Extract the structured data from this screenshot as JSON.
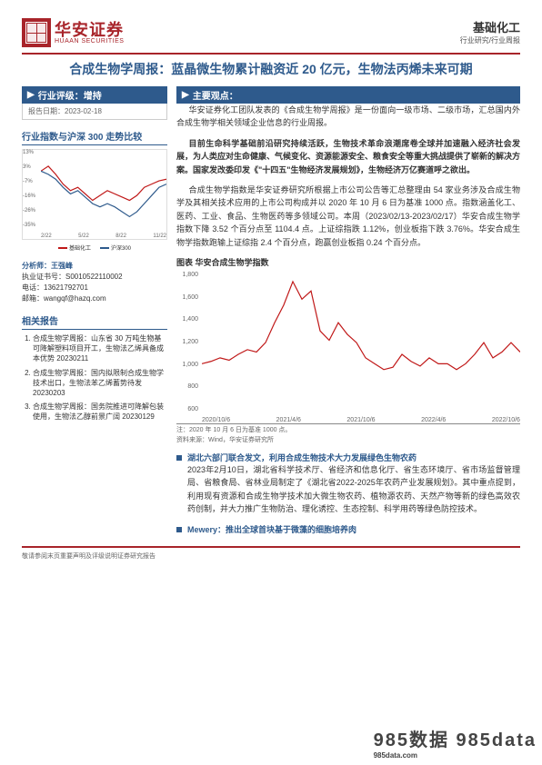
{
  "header": {
    "logo_cn": "华安证券",
    "logo_en": "HUAAN SECURITIES",
    "category": "基础化工",
    "subcategory": "行业研究/行业周报"
  },
  "title": "合成生物学周报：蓝晶微生物累计融资近 20 亿元，生物法丙烯未来可期",
  "left": {
    "rating_label": "行业评级：增持",
    "report_date_label": "报告日期：",
    "report_date": "2023-02-18",
    "section_compare": "行业指数与沪深 300 走势比较",
    "small_chart": {
      "y_ticks": [
        "13%",
        "3%",
        "-7%",
        "-16%",
        "-26%",
        "-35%"
      ],
      "x_ticks": [
        "2/22",
        "5/22",
        "8/22",
        "11/22"
      ],
      "series": [
        {
          "label": "基础化工",
          "color": "#c01818",
          "points": [
            0,
            3,
            -2,
            -8,
            -12,
            -10,
            -14,
            -18,
            -15,
            -12,
            -14,
            -16,
            -18,
            -15,
            -10,
            -8,
            -6,
            -5
          ]
        },
        {
          "label": "沪深300",
          "color": "#2e5a8c",
          "points": [
            0,
            -2,
            -5,
            -10,
            -14,
            -12,
            -16,
            -20,
            -22,
            -20,
            -22,
            -25,
            -28,
            -25,
            -20,
            -15,
            -10,
            -8
          ]
        }
      ],
      "y_range": [
        -35,
        13
      ]
    },
    "analyst": {
      "label": "分析师：王强峰",
      "cert_label": "执业证书号：",
      "cert": "S0010522110002",
      "tel_label": "电话：",
      "tel": "13621792701",
      "email_label": "邮箱：",
      "email": "wangqf@hazq.com"
    },
    "related_hd": "相关报告",
    "related": [
      "合成生物学周报：山东省 30 万吨生物基可降解塑料项目开工，生物法乙烯具备成本优势 20230211",
      "合成生物学周报：国内拟限制合成生物学技术出口，生物法苯乙烯蓄势待发 20230203",
      "合成生物学周报：国务院推进可降解包装使用，生物法乙醇前景广阔 20230129"
    ]
  },
  "right": {
    "main_view_hd": "主要观点：",
    "paragraphs": [
      {
        "bold": false,
        "text": "华安证券化工团队发表的《合成生物学周报》是一份面向一级市场、二级市场，汇总国内外合成生物学相关领域企业信息的行业周报。"
      },
      {
        "bold": true,
        "text": "目前生命科学基础前沿研究持续活跃，生物技术革命浪潮席卷全球并加速融入经济社会发展，为人类应对生命健康、气候变化、资源能源安全、粮食安全等重大挑战提供了崭新的解决方案。国家发改委印发《\"十四五\"生物经济发展规划》，生物经济万亿赛道呼之欲出。"
      },
      {
        "bold": false,
        "text": "合成生物学指数是华安证券研究所根据上市公司公告等汇总整理由 54 家业务涉及合成生物学及其相关技术应用的上市公司构成并以 2020 年 10 月 6 日为基准 1000 点。指数涵盖化工、医药、工业、食品、生物医药等多领域公司。本周（2023/02/13-2023/02/17）华安合成生物学指数下降 3.52 个百分点至 1104.4 点。上证综指跌 1.12%，创业板指下跌 3.76%。华安合成生物学指数跑输上证综指 2.4 个百分点，跑赢创业板指 0.24 个百分点。"
      }
    ],
    "chart_title": "图表 华安合成生物学指数",
    "big_chart": {
      "y_ticks": [
        "1,800",
        "1,600",
        "1,400",
        "1,200",
        "1,000",
        "800",
        "600"
      ],
      "x_ticks": [
        "2020/10/6",
        "2021/4/6",
        "2021/10/6",
        "2022/4/6",
        "2022/10/6"
      ],
      "color": "#c01818",
      "y_range": [
        600,
        1800
      ],
      "points": [
        1000,
        1020,
        1050,
        1030,
        1080,
        1120,
        1100,
        1180,
        1350,
        1500,
        1700,
        1550,
        1620,
        1280,
        1200,
        1350,
        1250,
        1180,
        1050,
        1000,
        950,
        970,
        1080,
        1020,
        980,
        1050,
        1000,
        1000,
        950,
        1000,
        1080,
        1180,
        1050,
        1100,
        1180,
        1100
      ]
    },
    "chart_note1": "注：2020 年 10 月 6 日为基准 1000 点。",
    "chart_note2": "资料来源：Wind，华安证券研究所",
    "bullets": [
      {
        "head": "湖北六部门联合发文，利用合成生物技术大力发展绿色生物农药",
        "body": "2023年2月10日，湖北省科学技术厅、省经济和信息化厅、省生态环境厅、省市场监督管理局、省粮食局、省林业局制定了《湖北省2022-2025年农药产业发展规划》。其中重点提到，利用现有资源和合成生物学技术加大微生物农药、植物源农药、天然产物等新的绿色高效农药创制，并大力推广生物防治、理化诱控、生态控制、科学用药等绿色防控技术。"
      },
      {
        "head": "Mewery：推出全球首块基于微藻的细胞培养肉",
        "body": ""
      }
    ]
  },
  "footer": "敬请参阅末页重要声明及评级说明证券研究报告",
  "watermark": {
    "big": "985数据  985data",
    "small": "985data.com"
  }
}
